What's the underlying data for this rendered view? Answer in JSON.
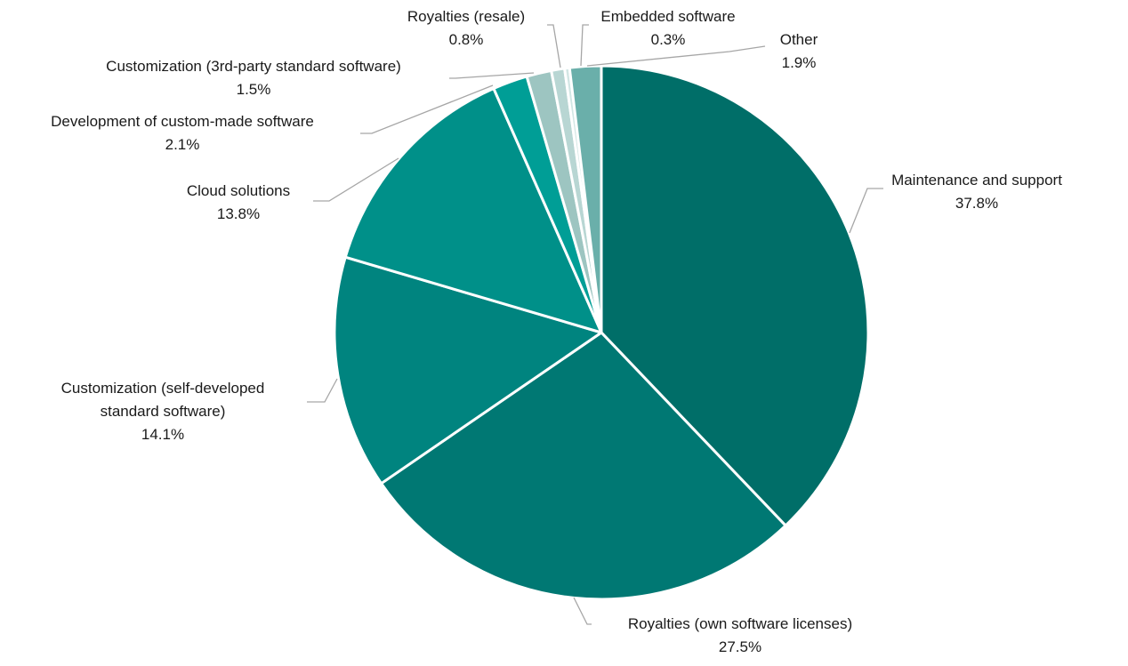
{
  "chart_data": {
    "type": "pie",
    "title": "",
    "start_angle_deg": 0,
    "direction": "clockwise",
    "slices": [
      {
        "label": "Maintenance and support",
        "value": 37.8,
        "value_label": "37.8%",
        "color": "#006e68"
      },
      {
        "label": "Royalties (own software licenses)",
        "value": 27.5,
        "value_label": "27.5%",
        "color": "#007873"
      },
      {
        "label": "Customization (self-developed standard software)",
        "label_lines": [
          "Customization (self-developed",
          "standard software)"
        ],
        "value": 14.1,
        "value_label": "14.1%",
        "color": "#00847f"
      },
      {
        "label": "Cloud solutions",
        "value": 13.8,
        "value_label": "13.8%",
        "color": "#009089"
      },
      {
        "label": "Development of custom-made software",
        "value": 2.1,
        "value_label": "2.1%",
        "color": "#009e96"
      },
      {
        "label": "Customization (3rd-party standard software)",
        "value": 1.5,
        "value_label": "1.5%",
        "color": "#9dc5c1"
      },
      {
        "label": "Royalties (resale)",
        "value": 0.8,
        "value_label": "0.8%",
        "color": "#b8d6d3"
      },
      {
        "label": "Embedded software",
        "value": 0.3,
        "value_label": "0.3%",
        "color": "#d2e6e4"
      },
      {
        "label": "Other",
        "value": 1.9,
        "value_label": "1.9%",
        "color": "#6aafaa"
      }
    ]
  }
}
